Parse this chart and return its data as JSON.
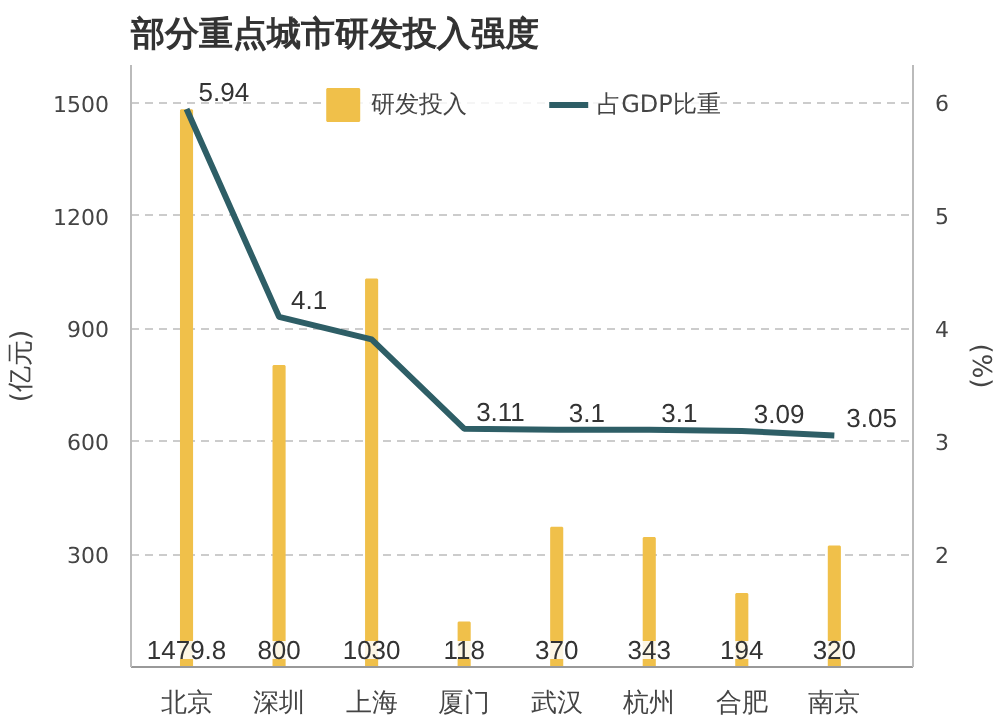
{
  "chart_data": {
    "type": "bar",
    "title": "部分重点城市研发投入强度",
    "ylabel": "(亿元)",
    "y2label": "(%)",
    "categories": [
      "北京",
      "深圳",
      "上海",
      "厦门",
      "武汉",
      "杭州",
      "合肥",
      "南京"
    ],
    "series": [
      {
        "name": "研发投入",
        "color": "#f0c04a",
        "values": [
          1479.8,
          800,
          1030,
          118,
          370,
          343,
          194,
          320
        ],
        "value_labels": [
          "1479.8",
          "800",
          "1030",
          "118",
          "370",
          "343",
          "194",
          "320"
        ]
      },
      {
        "name": "占GDP比重",
        "type": "line",
        "axis": "y2",
        "color": "#2e5e66",
        "values": [
          5.94,
          4.1,
          3.9,
          3.11,
          3.1,
          3.1,
          3.09,
          3.05
        ],
        "value_labels": [
          "5.94",
          "4.1",
          null,
          "3.11",
          "3.1",
          "3.1",
          "3.09",
          "3.05"
        ]
      }
    ],
    "ylim": [
      0,
      1600
    ],
    "yticks": [
      300,
      600,
      900,
      1200,
      1500
    ],
    "y2lim": [
      1,
      6.33
    ],
    "y2ticks": [
      2,
      3,
      4,
      5,
      6
    ],
    "grid": "y",
    "legend": "top"
  }
}
